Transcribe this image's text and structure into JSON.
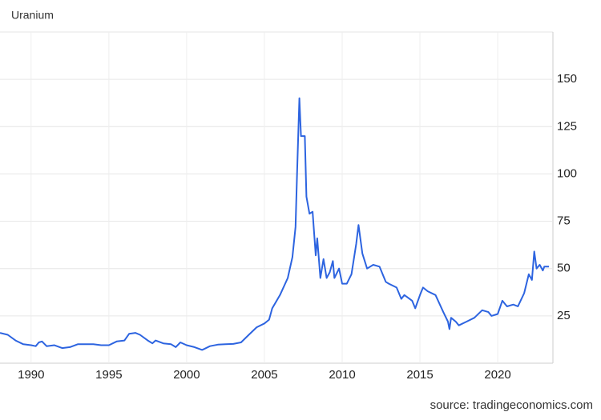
{
  "chart_data": {
    "type": "line",
    "title": "Uranium",
    "source": "source: tradingeconomics.com",
    "x": [
      1988.0,
      1988.5,
      1989,
      1989.5,
      1990,
      1990.3,
      1990.5,
      1990.7,
      1991,
      1991.5,
      1992,
      1992.5,
      1993,
      1993.5,
      1994,
      1994.5,
      1995,
      1995.5,
      1996,
      1996.3,
      1996.7,
      1997,
      1997.5,
      1997.8,
      1998,
      1998.5,
      1999,
      1999.3,
      1999.6,
      2000,
      2000.5,
      2001,
      2001.5,
      2002,
      2002.5,
      2003,
      2003.5,
      2004,
      2004.5,
      2005,
      2005.3,
      2005.5,
      2006,
      2006.5,
      2006.8,
      2007,
      2007.1,
      2007.25,
      2007.35,
      2007.6,
      2007.7,
      2007.9,
      2008.1,
      2008.3,
      2008.4,
      2008.6,
      2008.8,
      2009,
      2009.2,
      2009.4,
      2009.5,
      2009.8,
      2010,
      2010.3,
      2010.6,
      2010.9,
      2011.05,
      2011.3,
      2011.6,
      2012,
      2012.4,
      2012.8,
      2013,
      2013.5,
      2013.8,
      2014,
      2014.5,
      2014.7,
      2015,
      2015.2,
      2015.5,
      2016,
      2016.5,
      2016.8,
      2016.9,
      2017,
      2017.3,
      2017.5,
      2018,
      2018.5,
      2019,
      2019.4,
      2019.6,
      2020,
      2020.3,
      2020.6,
      2021,
      2021.3,
      2021.7,
      2022,
      2022.2,
      2022.35,
      2022.5,
      2022.7,
      2022.9,
      2023,
      2023.3
    ],
    "series": [
      {
        "name": "Uranium",
        "color": "#2d64e0",
        "values": [
          16,
          15,
          12,
          10,
          9.5,
          9,
          11,
          11.5,
          9,
          9.5,
          8,
          8.5,
          10,
          10,
          10,
          9.5,
          9.5,
          11.5,
          12,
          15.5,
          16,
          15,
          12,
          10.5,
          12,
          10.5,
          10,
          8.5,
          11,
          9.5,
          8.5,
          7,
          9,
          9.8,
          10,
          10.2,
          11,
          15,
          19,
          21,
          23,
          29,
          36,
          45,
          56,
          72,
          100,
          140,
          120,
          120,
          88,
          79,
          80,
          57,
          66,
          45,
          55,
          45,
          48,
          54,
          45,
          50,
          42,
          42,
          47,
          63,
          73,
          58,
          50,
          52,
          51,
          43,
          42,
          40,
          34,
          36,
          33,
          29,
          36,
          40,
          38,
          36,
          27,
          22,
          18,
          24,
          22,
          20,
          22,
          24,
          28,
          27,
          25,
          26,
          33,
          30,
          31,
          30,
          37,
          47,
          44,
          59,
          50,
          52,
          49,
          51,
          51
        ]
      }
    ],
    "xlim": [
      1988,
      2023.55
    ],
    "xticks": [
      1990,
      1995,
      2000,
      2005,
      2010,
      2015,
      2020
    ],
    "ylim": [
      0,
      175
    ],
    "yticks": [
      25,
      50,
      75,
      100,
      125,
      150
    ],
    "grid": true
  }
}
